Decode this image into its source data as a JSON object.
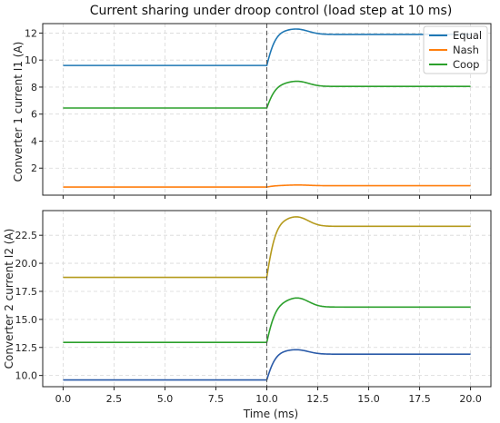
{
  "chart_data": [
    {
      "type": "line",
      "title": "Current sharing under droop control (load step at 10 ms)",
      "xlabel": "",
      "ylabel": "Converter 1 current I1 (A)",
      "xlim": [
        -1.0,
        21.0
      ],
      "ylim": [
        0.0,
        12.7
      ],
      "yticks": [
        2,
        4,
        6,
        8,
        10,
        12
      ],
      "xticks": [
        0.0,
        2.5,
        5.0,
        7.5,
        10.0,
        12.5,
        15.0,
        17.5,
        20.0
      ],
      "x_tick_labels_shown": false,
      "grid": true,
      "vline_x": 10.0,
      "legend": {
        "placement": "top-right",
        "entries": [
          "Equal",
          "Nash",
          "Coop"
        ]
      },
      "series": [
        {
          "name": "Equal",
          "color": "#1f77b4",
          "initial": 9.6,
          "final": 11.9,
          "peak": 12.25
        },
        {
          "name": "Nash",
          "color": "#ff7f0e",
          "initial": 0.6,
          "final": 0.7,
          "peak": 0.75
        },
        {
          "name": "Coop",
          "color": "#2ca02c",
          "initial": 6.45,
          "final": 8.05,
          "peak": 8.4
        }
      ]
    },
    {
      "type": "line",
      "title": "",
      "xlabel": "Time (ms)",
      "ylabel": "Converter 2 current I2 (A)",
      "xlim": [
        -1.0,
        21.0
      ],
      "ylim": [
        9.0,
        24.7
      ],
      "yticks": [
        10.0,
        12.5,
        15.0,
        17.5,
        20.0,
        22.5
      ],
      "xticks": [
        0.0,
        2.5,
        5.0,
        7.5,
        10.0,
        12.5,
        15.0,
        17.5,
        20.0
      ],
      "x_tick_labels_shown": true,
      "grid": true,
      "vline_x": 10.0,
      "series": [
        {
          "color": "#b59a1c",
          "initial": 18.75,
          "final": 23.3,
          "peak": 24.05
        },
        {
          "color": "#2ca02c",
          "initial": 12.95,
          "final": 16.1,
          "peak": 16.85
        },
        {
          "color": "#2a5aa8",
          "initial": 9.6,
          "final": 11.9,
          "peak": 12.25
        }
      ]
    }
  ]
}
